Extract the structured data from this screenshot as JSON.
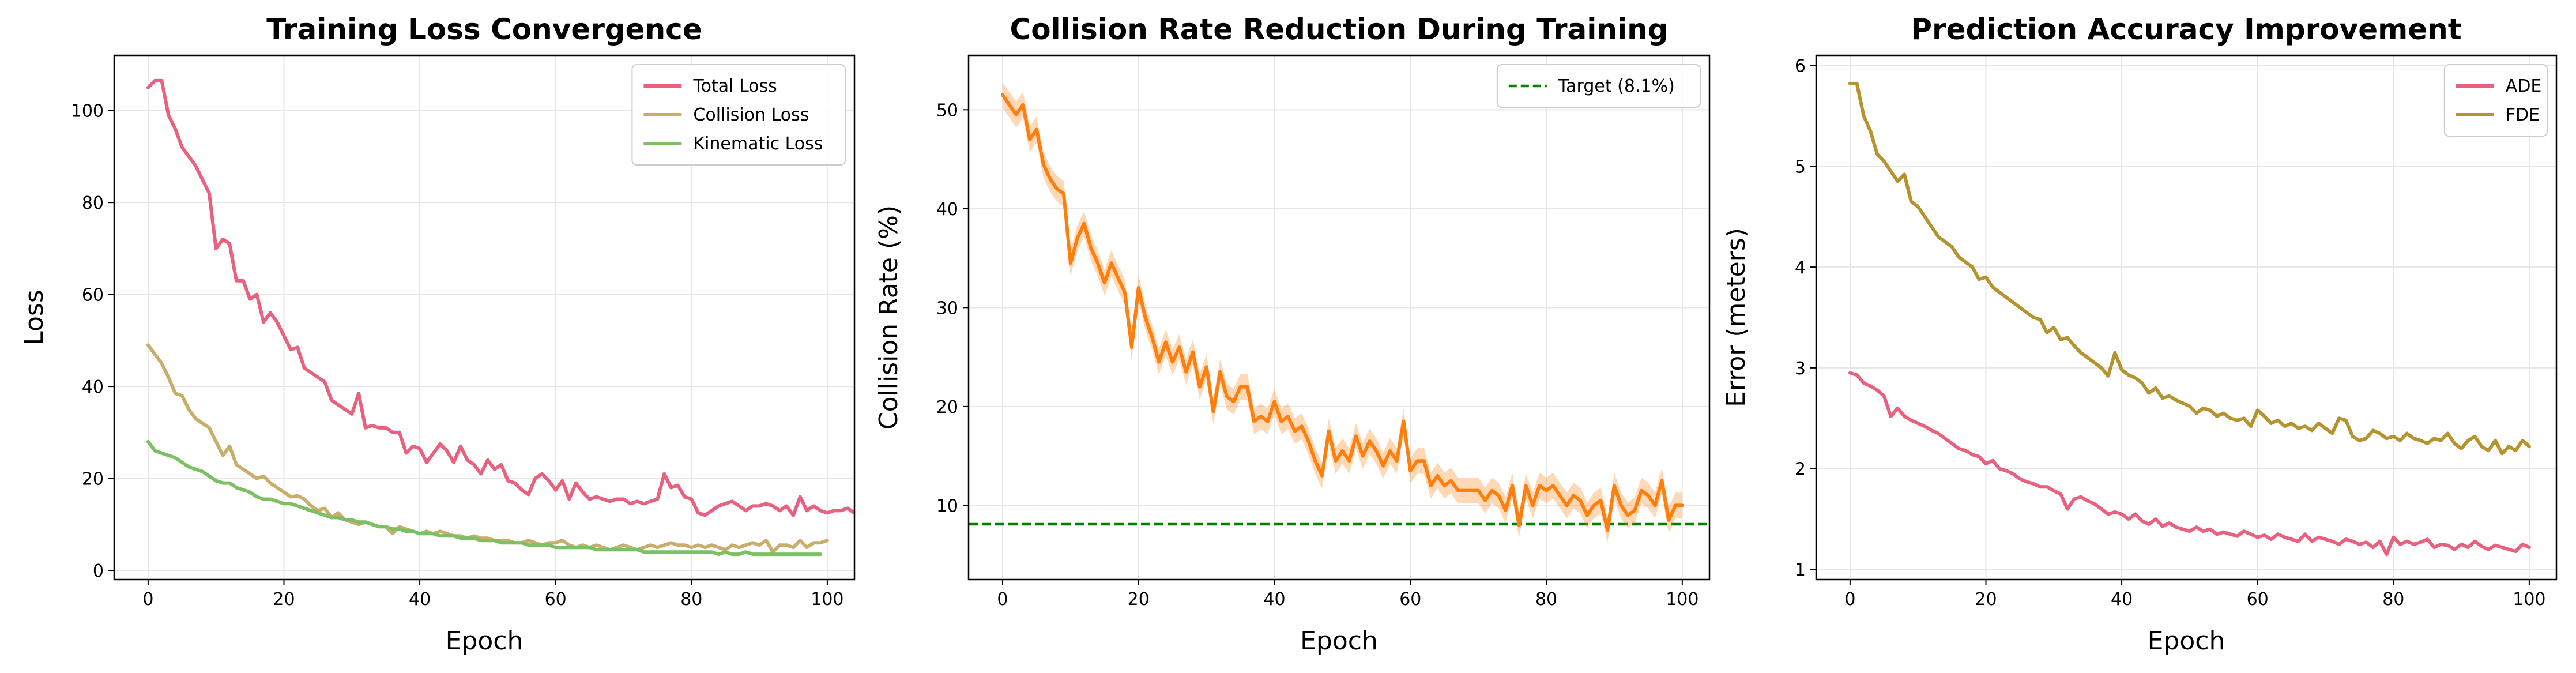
{
  "figure": {
    "background": "#ffffff"
  },
  "chart_data": [
    {
      "type": "line",
      "title": "Training Loss Convergence",
      "xlabel": "Epoch",
      "ylabel": "Loss",
      "xlim": [
        -5,
        104
      ],
      "ylim": [
        -2,
        112
      ],
      "xticks": [
        0,
        20,
        40,
        60,
        80,
        100
      ],
      "yticks": [
        0,
        20,
        40,
        60,
        80,
        100
      ],
      "grid": true,
      "legend": "top-right",
      "series": [
        {
          "name": "Total Loss",
          "color": "#e8627f",
          "values": [
            105,
            106.5,
            106.5,
            99,
            96,
            92,
            90,
            88,
            85,
            82,
            70,
            72,
            71,
            63,
            63,
            59,
            60,
            54,
            56,
            54,
            51,
            48,
            48.5,
            44,
            43,
            42,
            41,
            37,
            36,
            35,
            34,
            38.5,
            31,
            31.5,
            31,
            31,
            30,
            30,
            25.5,
            27,
            26.5,
            23.5,
            25.5,
            27.5,
            26,
            23.5,
            27,
            24,
            23,
            21,
            24,
            22,
            23,
            19.5,
            19,
            17.5,
            16.5,
            20,
            21,
            19.5,
            17.5,
            19.5,
            15.5,
            19,
            17,
            15.5,
            16,
            15.5,
            15,
            15.5,
            15.5,
            14.5,
            15,
            14.5,
            15,
            15.5,
            21,
            18,
            18.5,
            16,
            15.5,
            12.5,
            12,
            13,
            14,
            14.5,
            15,
            14,
            13,
            14,
            14,
            14.5,
            14,
            13,
            14,
            12,
            16,
            13,
            14,
            13,
            12.5,
            13,
            13,
            13.5,
            12.5,
            15.5
          ]
        },
        {
          "name": "Collision Loss",
          "color": "#c9ad6a",
          "values": [
            49,
            47,
            45,
            42,
            38.5,
            38,
            35,
            33,
            32,
            31,
            28,
            25,
            27,
            23,
            22,
            21,
            20,
            20.5,
            19,
            18,
            17,
            16,
            16.2,
            15.5,
            14,
            13,
            13.5,
            11.5,
            12.5,
            11,
            10.5,
            10,
            10.5,
            10,
            9.5,
            9.5,
            8,
            9.5,
            9,
            8.5,
            8,
            8.5,
            8,
            8.5,
            8,
            7.5,
            7.5,
            7,
            7.5,
            7,
            7,
            6.5,
            6.5,
            6.5,
            6,
            6,
            6.5,
            6,
            5.5,
            6,
            6,
            6.5,
            5.5,
            5,
            5.5,
            5,
            5.5,
            5,
            4.5,
            5,
            5.5,
            5,
            4.5,
            5,
            5.5,
            5,
            5.5,
            6,
            5.5,
            5.5,
            5,
            5.5,
            5,
            5.5,
            5,
            4.5,
            5.5,
            5,
            5.5,
            6,
            5.5,
            6.5,
            4,
            5.5,
            5.5,
            5,
            6.5,
            5,
            6,
            6,
            6.5
          ]
        },
        {
          "name": "Kinematic Loss",
          "color": "#7cc063",
          "values": [
            28,
            26,
            25.5,
            25,
            24.5,
            23.5,
            22.5,
            22,
            21.5,
            20.5,
            19.5,
            19,
            19,
            18,
            17.5,
            17,
            16,
            15.5,
            15.5,
            15,
            14.5,
            14.5,
            14,
            13.5,
            13,
            12.5,
            12,
            11.5,
            11.5,
            11,
            11,
            10.5,
            10.5,
            10,
            9.5,
            9.5,
            9,
            9,
            8.5,
            8.5,
            8,
            8,
            8,
            7.5,
            7.5,
            7.5,
            7,
            7,
            7,
            6.5,
            6.5,
            6.5,
            6,
            6,
            6,
            6,
            5.5,
            5.5,
            5.5,
            5.5,
            5,
            5,
            5,
            5,
            5,
            5,
            4.5,
            4.5,
            4.5,
            4.5,
            4.5,
            4.5,
            4.5,
            4,
            4,
            4,
            4,
            4,
            4,
            4,
            4,
            4,
            4,
            4,
            3.5,
            4,
            3.5,
            3.5,
            4,
            3.5,
            3.5,
            3.5,
            3.5,
            3.5,
            3.5,
            3.5,
            3.5,
            3.5,
            3.5,
            3.5
          ]
        }
      ]
    },
    {
      "type": "line",
      "title": "Collision Rate Reduction During Training",
      "xlabel": "Epoch",
      "ylabel": "Collision Rate (%)",
      "xlim": [
        -5,
        104
      ],
      "ylim": [
        2.5,
        55.5
      ],
      "xticks": [
        0,
        20,
        40,
        60,
        80,
        100
      ],
      "yticks": [
        10,
        20,
        30,
        40,
        50
      ],
      "grid": true,
      "legend": "top-right",
      "series": [
        {
          "name": "",
          "color": "#ff7f0e",
          "band": 1.3,
          "values": [
            51.5,
            50.5,
            49.5,
            50.5,
            47,
            48,
            44.5,
            43,
            42,
            41.5,
            34.5,
            37,
            38.5,
            36,
            34.5,
            32.5,
            34.5,
            33,
            31.5,
            26,
            32,
            29,
            27,
            24.5,
            26.5,
            24.5,
            26,
            23.5,
            25.5,
            22,
            24,
            19.5,
            23.5,
            21,
            20.5,
            22,
            22,
            18.5,
            19,
            18.5,
            20.5,
            18.5,
            19,
            17.5,
            18,
            16.5,
            14.5,
            13,
            17.5,
            14.5,
            15.5,
            14.5,
            17,
            15,
            16.5,
            15.5,
            14,
            15.5,
            14.5,
            18.5,
            13.5,
            14.5,
            14.5,
            12,
            13,
            12,
            12.5,
            11.5,
            11.5,
            11.5,
            11.5,
            10.5,
            11.5,
            11,
            9.5,
            12,
            8,
            12,
            10,
            12,
            11.5,
            12,
            11,
            10,
            11,
            10.5,
            9,
            10,
            10.5,
            7.5,
            12,
            10,
            9,
            9.5,
            11.5,
            11,
            10,
            12.5,
            8.5,
            10,
            10
          ]
        }
      ],
      "target": {
        "label": "Target (8.1%)",
        "value": 8.1,
        "color": "#008000"
      }
    },
    {
      "type": "line",
      "title": "Prediction Accuracy Improvement",
      "xlabel": "Epoch",
      "ylabel": "Error (meters)",
      "xlim": [
        -5,
        104
      ],
      "ylim": [
        0.9,
        6.1
      ],
      "xticks": [
        0,
        20,
        40,
        60,
        80,
        100
      ],
      "yticks": [
        1,
        2,
        3,
        4,
        5,
        6
      ],
      "grid": true,
      "legend": "top-right",
      "series": [
        {
          "name": "ADE",
          "color": "#e8627f",
          "values": [
            2.95,
            2.93,
            2.85,
            2.82,
            2.78,
            2.72,
            2.52,
            2.6,
            2.52,
            2.48,
            2.45,
            2.42,
            2.38,
            2.35,
            2.3,
            2.25,
            2.2,
            2.18,
            2.14,
            2.12,
            2.05,
            2.08,
            2.0,
            1.98,
            1.95,
            1.9,
            1.87,
            1.85,
            1.82,
            1.82,
            1.78,
            1.75,
            1.6,
            1.7,
            1.72,
            1.68,
            1.65,
            1.6,
            1.55,
            1.57,
            1.55,
            1.5,
            1.55,
            1.48,
            1.45,
            1.5,
            1.43,
            1.46,
            1.42,
            1.4,
            1.38,
            1.42,
            1.38,
            1.4,
            1.35,
            1.37,
            1.35,
            1.33,
            1.38,
            1.35,
            1.32,
            1.34,
            1.3,
            1.35,
            1.32,
            1.3,
            1.28,
            1.35,
            1.28,
            1.32,
            1.3,
            1.28,
            1.25,
            1.3,
            1.28,
            1.25,
            1.27,
            1.22,
            1.28,
            1.15,
            1.32,
            1.25,
            1.28,
            1.25,
            1.27,
            1.3,
            1.22,
            1.25,
            1.24,
            1.2,
            1.25,
            1.22,
            1.28,
            1.23,
            1.2,
            1.24,
            1.22,
            1.2,
            1.18,
            1.25,
            1.22
          ]
        },
        {
          "name": "FDE",
          "color": "#b5932e",
          "values": [
            5.82,
            5.82,
            5.5,
            5.35,
            5.12,
            5.05,
            4.95,
            4.85,
            4.92,
            4.65,
            4.6,
            4.5,
            4.4,
            4.3,
            4.25,
            4.2,
            4.1,
            4.05,
            4.0,
            3.88,
            3.9,
            3.8,
            3.75,
            3.7,
            3.65,
            3.6,
            3.55,
            3.5,
            3.48,
            3.35,
            3.4,
            3.28,
            3.3,
            3.22,
            3.15,
            3.1,
            3.05,
            3.0,
            2.92,
            3.15,
            2.98,
            2.93,
            2.9,
            2.85,
            2.75,
            2.8,
            2.7,
            2.72,
            2.68,
            2.65,
            2.62,
            2.55,
            2.6,
            2.58,
            2.52,
            2.55,
            2.5,
            2.48,
            2.5,
            2.42,
            2.58,
            2.52,
            2.45,
            2.48,
            2.42,
            2.45,
            2.4,
            2.42,
            2.38,
            2.45,
            2.4,
            2.35,
            2.5,
            2.48,
            2.32,
            2.28,
            2.3,
            2.38,
            2.35,
            2.3,
            2.32,
            2.28,
            2.35,
            2.3,
            2.28,
            2.25,
            2.3,
            2.28,
            2.35,
            2.25,
            2.2,
            2.28,
            2.32,
            2.22,
            2.18,
            2.28,
            2.15,
            2.22,
            2.18,
            2.28,
            2.22
          ]
        }
      ]
    }
  ]
}
